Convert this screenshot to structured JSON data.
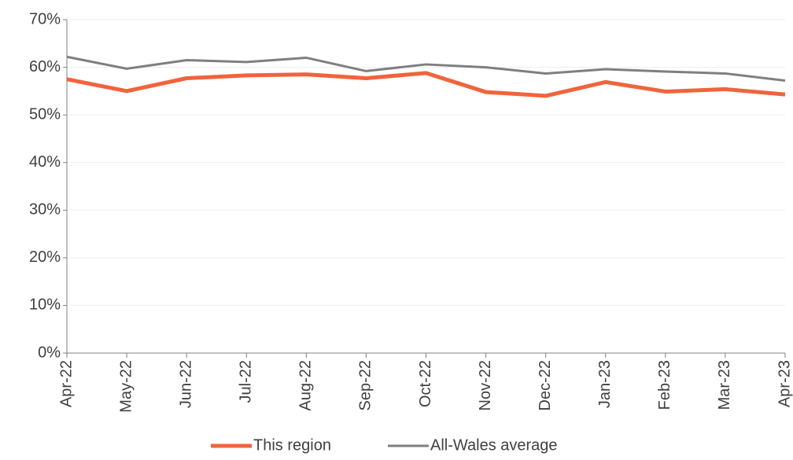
{
  "chart_data": {
    "type": "line",
    "categories": [
      "Apr-22",
      "May-22",
      "Jun-22",
      "Jul-22",
      "Aug-22",
      "Sep-22",
      "Oct-22",
      "Nov-22",
      "Dec-22",
      "Jan-23",
      "Feb-23",
      "Mar-23",
      "Apr-23"
    ],
    "series": [
      {
        "name": "This region",
        "color": "#f0643c",
        "values": [
          57.5,
          55.0,
          57.7,
          58.3,
          58.5,
          57.7,
          58.8,
          54.8,
          54.0,
          56.9,
          54.9,
          55.4,
          54.3
        ]
      },
      {
        "name": "All-Wales average",
        "color": "#7f7f7f",
        "values": [
          62.2,
          59.7,
          61.5,
          61.1,
          62.0,
          59.2,
          60.6,
          60.0,
          58.7,
          59.6,
          59.1,
          58.7,
          57.2
        ]
      }
    ],
    "ylim": [
      0,
      70
    ],
    "yticks": [
      {
        "value": 0,
        "label": "0%"
      },
      {
        "value": 10,
        "label": "10%"
      },
      {
        "value": 20,
        "label": "20%"
      },
      {
        "value": 30,
        "label": "30%"
      },
      {
        "value": 40,
        "label": "40%"
      },
      {
        "value": 50,
        "label": "50%"
      },
      {
        "value": 60,
        "label": "60%"
      },
      {
        "value": 70,
        "label": "70%"
      }
    ],
    "grid": true,
    "legend": "bottom"
  }
}
